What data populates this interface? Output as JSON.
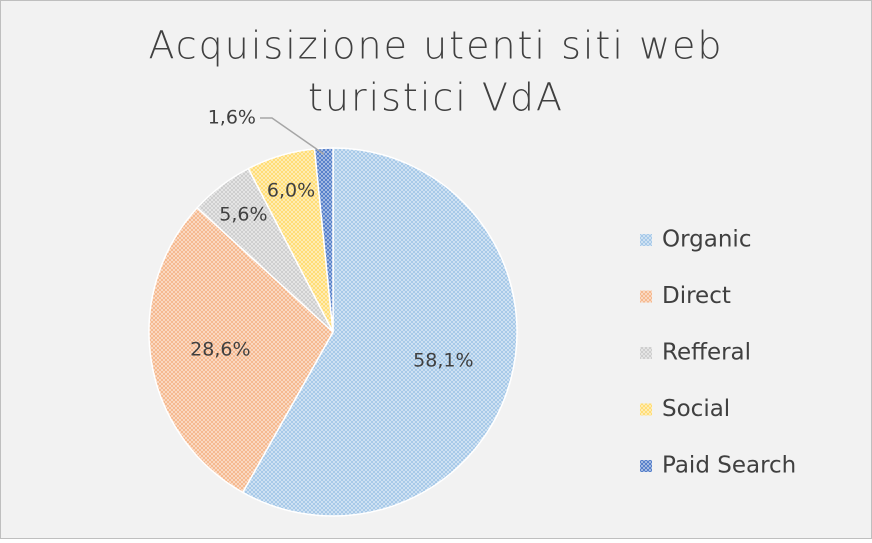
{
  "chart_data": {
    "type": "pie",
    "title": [
      "Acquisizione utenti siti web",
      "turistici VdA"
    ],
    "categories": [
      "Organic",
      "Direct",
      "Refferal",
      "Social",
      "Paid Search"
    ],
    "values": [
      58.1,
      28.6,
      5.6,
      6.0,
      1.6
    ],
    "value_labels": [
      "58,1%",
      "28,6%",
      "5,6%",
      "6,0%",
      "1,6%"
    ],
    "colors": [
      "#9dc3e6",
      "#f4b183",
      "#c9c9c9",
      "#ffd966",
      "#4472c4"
    ],
    "legend": "right"
  }
}
